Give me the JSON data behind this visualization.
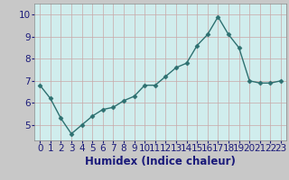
{
  "x": [
    0,
    1,
    2,
    3,
    4,
    5,
    6,
    7,
    8,
    9,
    10,
    11,
    12,
    13,
    14,
    15,
    16,
    17,
    18,
    19,
    20,
    21,
    22,
    23
  ],
  "y": [
    6.8,
    6.2,
    5.3,
    4.6,
    5.0,
    5.4,
    5.7,
    5.8,
    6.1,
    6.3,
    6.8,
    6.8,
    7.2,
    7.6,
    7.8,
    8.6,
    9.1,
    9.9,
    9.1,
    8.5,
    7.0,
    6.9,
    6.9,
    7.0
  ],
  "xlabel": "Humidex (Indice chaleur)",
  "xlim": [
    -0.5,
    23.5
  ],
  "ylim": [
    4.3,
    10.5
  ],
  "yticks": [
    5,
    6,
    7,
    8,
    9,
    10
  ],
  "xticks": [
    0,
    1,
    2,
    3,
    4,
    5,
    6,
    7,
    8,
    9,
    10,
    11,
    12,
    13,
    14,
    15,
    16,
    17,
    18,
    19,
    20,
    21,
    22,
    23
  ],
  "line_color": "#2d7070",
  "marker": "D",
  "marker_size": 2.5,
  "bg_plot": "#d0eded",
  "bg_fig": "#c8c8c8",
  "grid_color_v": "#c8a8a8",
  "grid_color_h": "#c8a8a8",
  "label_color": "#1a1a7a",
  "tick_color": "#1a1a7a",
  "xlabel_fontsize": 8.5,
  "tick_fontsize": 7.5,
  "linewidth": 1.0
}
